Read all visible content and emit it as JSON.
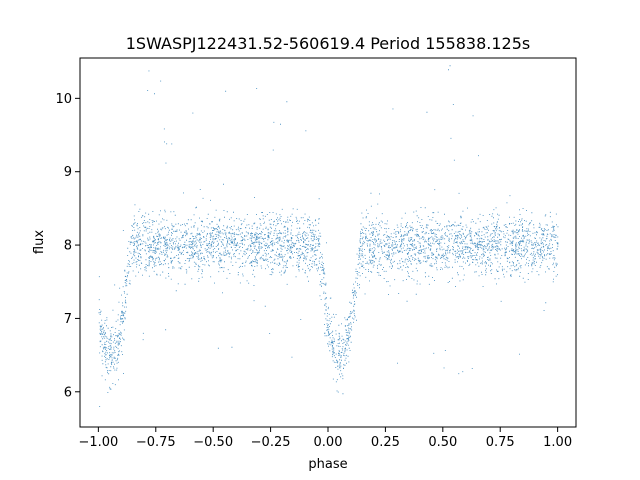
{
  "chart_data": {
    "type": "scatter",
    "title": "1SWASPJ122431.52-560619.4 Period 155838.125s",
    "xlabel": "phase",
    "ylabel": "flux",
    "xlim": [
      -1.08,
      1.08
    ],
    "ylim": [
      5.52,
      10.55
    ],
    "x_ticks": [
      -1.0,
      -0.75,
      -0.5,
      -0.25,
      0.0,
      0.25,
      0.5,
      0.75,
      1.0
    ],
    "x_tick_labels": [
      "−1.00",
      "−0.75",
      "−0.50",
      "−0.25",
      "0.00",
      "0.25",
      "0.50",
      "0.75",
      "1.00"
    ],
    "y_ticks": [
      6,
      7,
      8,
      9,
      10
    ],
    "y_tick_labels": [
      "6",
      "7",
      "8",
      "9",
      "10"
    ],
    "grid": false,
    "legend": "none",
    "point_color": "#1f77b4",
    "series": [
      {
        "description_of_shape": "phase-folded eclipsing binary light curve",
        "baseline_flux": 8.0,
        "scatter_sigma": 0.2,
        "eclipses": [
          {
            "center_phase": -0.95,
            "min_flux": 6.5,
            "half_width": 0.09
          },
          {
            "center_phase": 0.05,
            "min_flux": 6.5,
            "half_width": 0.09
          }
        ],
        "points_count": 14000,
        "x_range": [
          -1.0,
          1.0
        ]
      }
    ]
  }
}
